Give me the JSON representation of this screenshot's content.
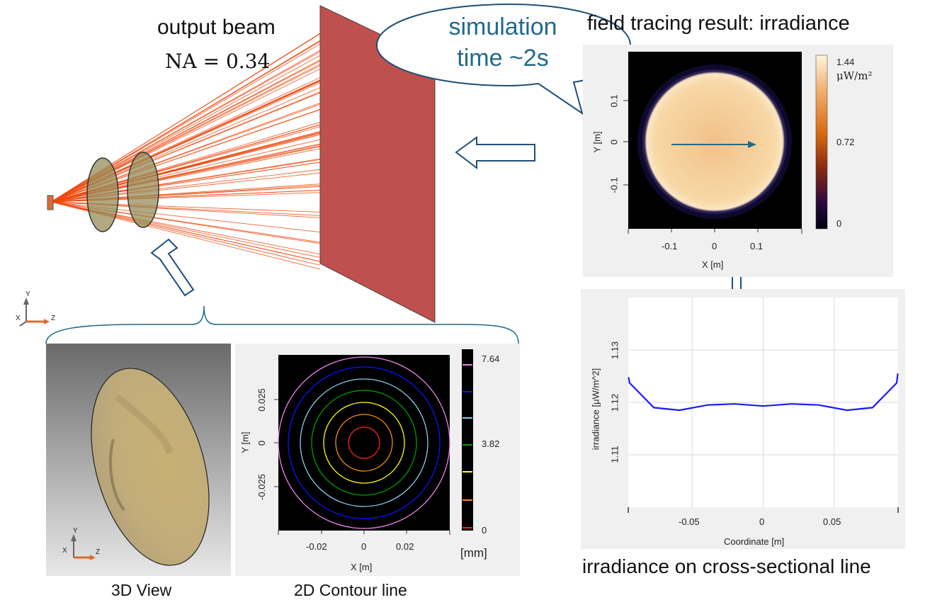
{
  "labels": {
    "output_beam": "output beam",
    "na": "NA = 0.34",
    "simulation_time": "simulation time ~2s",
    "field_tracing": "field tracing result: irradiance",
    "cross_section": "irradiance on cross-sectional line",
    "view3d": "3D View",
    "contour2d": "2D Contour line"
  },
  "axes_triad": {
    "y": "Y",
    "x": "X",
    "z": "Z"
  },
  "irradiance_map": {
    "x_ticks": [
      "-0.1",
      "0",
      "0.1"
    ],
    "y_ticks": [
      "0.1",
      "0",
      "-0.1"
    ],
    "xlabel": "X [m]",
    "ylabel": "Y [m]",
    "colorbar_max": "1.44",
    "colorbar_unit": "μW/m²",
    "colorbar_mid": "0.72",
    "colorbar_min": "0"
  },
  "contour_map": {
    "x_ticks": [
      "-0.02",
      "0",
      "0.02"
    ],
    "y_ticks": [
      "0.025",
      "0",
      "-0.025"
    ],
    "xlabel": "X [m]",
    "ylabel": "Y [m]",
    "colorbar_max": "7.64",
    "colorbar_mid": "3.82",
    "colorbar_min": "0",
    "colorbar_unit": "[mm]",
    "level_colors": [
      "#ff2020",
      "#ff8c00",
      "#ffff00",
      "#00a000",
      "#87ceeb",
      "#1010ff",
      "#ee82ee"
    ]
  },
  "chart_data": {
    "type": "line",
    "xlabel": "Coordinate [m]",
    "ylabel": "irradiance [μW/m^2]",
    "x_ticks": [
      "-0.05",
      "0",
      "0.05"
    ],
    "y_ticks": [
      "1.13",
      "1.12",
      "1.11"
    ],
    "xlim": [
      -0.095,
      0.095
    ],
    "ylim": [
      1.1,
      1.14
    ],
    "grid": true,
    "series": [
      {
        "color": "#1a1aff",
        "x": [
          -0.0948,
          -0.094,
          -0.077,
          -0.059,
          -0.039,
          -0.02,
          0.0,
          0.02,
          0.039,
          0.059,
          0.077,
          0.094,
          0.0948
        ],
        "y": [
          1.1248,
          1.1237,
          1.119,
          1.1185,
          1.1195,
          1.1197,
          1.1193,
          1.1197,
          1.1195,
          1.1185,
          1.119,
          1.1237,
          1.1255
        ]
      }
    ]
  }
}
